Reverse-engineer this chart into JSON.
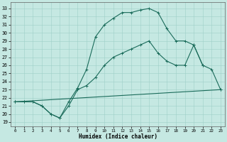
{
  "xlabel": "Humidex (Indice chaleur)",
  "bg_color": "#c5e8e2",
  "grid_color": "#9ecfc8",
  "line_color": "#1a6b5a",
  "xlim": [
    -0.5,
    23.5
  ],
  "ylim": [
    18.5,
    33.8
  ],
  "yticks": [
    19,
    20,
    21,
    22,
    23,
    24,
    25,
    26,
    27,
    28,
    29,
    30,
    31,
    32,
    33
  ],
  "xticks": [
    0,
    1,
    2,
    3,
    4,
    5,
    6,
    7,
    8,
    9,
    10,
    11,
    12,
    13,
    14,
    15,
    16,
    17,
    18,
    19,
    20,
    21,
    22,
    23
  ],
  "line1_x": [
    0,
    1,
    2,
    3,
    4,
    5,
    6,
    7,
    8,
    9,
    10,
    11,
    12,
    13,
    14,
    15,
    16,
    17,
    18,
    19,
    20,
    21
  ],
  "line1_y": [
    21.5,
    21.5,
    21.5,
    21.0,
    20.0,
    19.5,
    21.5,
    23.2,
    25.5,
    29.5,
    31.0,
    31.8,
    32.5,
    32.5,
    32.8,
    33.0,
    32.5,
    30.5,
    29.0,
    29.0,
    28.5,
    26.0
  ],
  "line2_x": [
    0,
    1,
    2,
    3,
    4,
    5,
    6,
    7,
    8,
    9,
    10,
    11,
    12,
    13,
    14,
    15,
    16,
    17,
    18,
    19,
    20,
    21,
    22,
    23
  ],
  "line2_y": [
    21.5,
    21.5,
    21.5,
    21.0,
    20.0,
    19.5,
    21.0,
    23.0,
    23.5,
    24.5,
    26.0,
    27.0,
    27.5,
    28.0,
    28.5,
    29.0,
    27.5,
    26.5,
    26.0,
    26.0,
    28.5,
    26.0,
    25.5,
    23.0
  ],
  "line3_x": [
    0,
    23
  ],
  "line3_y": [
    21.5,
    23.0
  ]
}
